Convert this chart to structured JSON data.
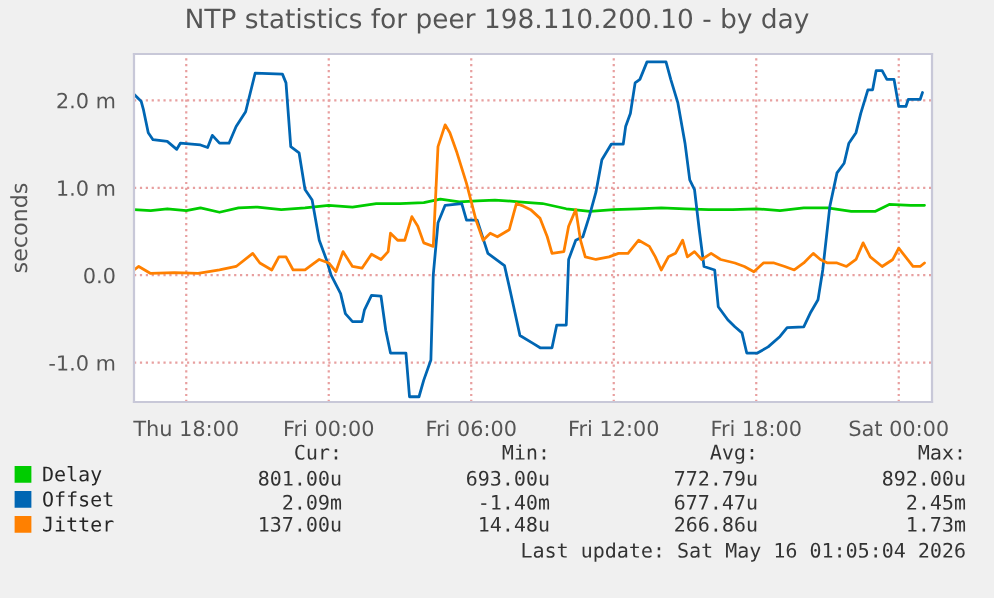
{
  "chart_data": {
    "type": "line",
    "title": "NTP statistics for peer 198.110.200.10 - by day",
    "ylabel": "seconds",
    "xlim": [
      "2026-05-14T15:48",
      "2026-05-16T01:24"
    ],
    "ylim": [
      -1.45,
      2.53
    ],
    "xticks": [
      {
        "value": "2026-05-14T18:00",
        "label": "Thu 18:00"
      },
      {
        "value": "2026-05-15T00:00",
        "label": "Fri 00:00"
      },
      {
        "value": "2026-05-15T06:00",
        "label": "Fri 06:00"
      },
      {
        "value": "2026-05-15T12:00",
        "label": "Fri 12:00"
      },
      {
        "value": "2026-05-15T18:00",
        "label": "Fri 18:00"
      },
      {
        "value": "2026-05-16T00:00",
        "label": "Sat 00:00"
      }
    ],
    "yticks": [
      {
        "value": -1,
        "label": "-1.0 m"
      },
      {
        "value": 0,
        "label": "0.0"
      },
      {
        "value": 1,
        "label": "1.0 m"
      },
      {
        "value": 2,
        "label": "2.0 m"
      }
    ],
    "grid": true,
    "legend": "bottom left",
    "series": [
      {
        "name": "Delay",
        "color": "#00cc00",
        "x": [
          "2026-05-14T15:48",
          "2026-05-14T16:30",
          "2026-05-14T17:12",
          "2026-05-14T18:00",
          "2026-05-14T18:36",
          "2026-05-14T19:24",
          "2026-05-14T20:12",
          "2026-05-14T21:00",
          "2026-05-14T22:00",
          "2026-05-14T23:00",
          "2026-05-15T00:00",
          "2026-05-15T01:00",
          "2026-05-15T02:00",
          "2026-05-15T03:00",
          "2026-05-15T04:00",
          "2026-05-15T04:42",
          "2026-05-15T05:30",
          "2026-05-15T06:15",
          "2026-05-15T07:00",
          "2026-05-15T08:00",
          "2026-05-15T09:00",
          "2026-05-15T10:00",
          "2026-05-15T11:00",
          "2026-05-15T12:00",
          "2026-05-15T13:00",
          "2026-05-15T14:00",
          "2026-05-15T15:00",
          "2026-05-15T16:00",
          "2026-05-15T17:00",
          "2026-05-15T18:00",
          "2026-05-15T19:00",
          "2026-05-15T20:00",
          "2026-05-15T21:00",
          "2026-05-15T22:00",
          "2026-05-15T23:00",
          "2026-05-15T23:36",
          "2026-05-16T00:30",
          "2026-05-16T01:05"
        ],
        "values": [
          0.75,
          0.74,
          0.76,
          0.74,
          0.77,
          0.72,
          0.77,
          0.78,
          0.75,
          0.77,
          0.8,
          0.78,
          0.82,
          0.82,
          0.83,
          0.87,
          0.84,
          0.85,
          0.86,
          0.84,
          0.82,
          0.76,
          0.73,
          0.75,
          0.76,
          0.77,
          0.76,
          0.75,
          0.75,
          0.76,
          0.74,
          0.77,
          0.77,
          0.73,
          0.73,
          0.81,
          0.8,
          0.8
        ]
      },
      {
        "name": "Offset",
        "color": "#0066b3",
        "x": [
          "2026-05-14T15:48",
          "2026-05-14T16:06",
          "2026-05-14T16:12",
          "2026-05-14T16:24",
          "2026-05-14T16:36",
          "2026-05-14T17:12",
          "2026-05-14T17:36",
          "2026-05-14T17:45",
          "2026-05-14T18:36",
          "2026-05-14T18:54",
          "2026-05-14T19:06",
          "2026-05-14T19:24",
          "2026-05-14T19:48",
          "2026-05-14T20:06",
          "2026-05-14T20:30",
          "2026-05-14T20:54",
          "2026-05-14T22:03",
          "2026-05-14T22:12",
          "2026-05-14T22:24",
          "2026-05-14T22:45",
          "2026-05-14T23:00",
          "2026-05-14T23:18",
          "2026-05-14T23:36",
          "2026-05-14T23:54",
          "2026-05-15T00:06",
          "2026-05-15T00:30",
          "2026-05-15T00:42",
          "2026-05-15T01:00",
          "2026-05-15T01:24",
          "2026-05-15T01:30",
          "2026-05-15T01:48",
          "2026-05-15T02:12",
          "2026-05-15T02:24",
          "2026-05-15T02:36",
          "2026-05-15T03:15",
          "2026-05-15T03:24",
          "2026-05-15T03:48",
          "2026-05-15T04:00",
          "2026-05-15T04:18",
          "2026-05-15T04:24",
          "2026-05-15T04:36",
          "2026-05-15T04:54",
          "2026-05-15T05:36",
          "2026-05-15T05:48",
          "2026-05-15T06:15",
          "2026-05-15T06:42",
          "2026-05-15T07:24",
          "2026-05-15T07:36",
          "2026-05-15T08:03",
          "2026-05-15T08:36",
          "2026-05-15T08:54",
          "2026-05-15T09:24",
          "2026-05-15T09:36",
          "2026-05-15T10:00",
          "2026-05-15T10:06",
          "2026-05-15T10:24",
          "2026-05-15T10:42",
          "2026-05-15T10:58",
          "2026-05-15T11:15",
          "2026-05-15T11:30",
          "2026-05-15T11:54",
          "2026-05-15T12:24",
          "2026-05-15T12:30",
          "2026-05-15T12:42",
          "2026-05-15T12:54",
          "2026-05-15T13:06",
          "2026-05-15T13:24",
          "2026-05-15T14:12",
          "2026-05-15T14:24",
          "2026-05-15T14:42",
          "2026-05-15T15:00",
          "2026-05-15T15:12",
          "2026-05-15T15:24",
          "2026-05-15T15:36",
          "2026-05-15T15:48",
          "2026-05-15T16:15",
          "2026-05-15T16:24",
          "2026-05-15T16:48",
          "2026-05-15T17:06",
          "2026-05-15T17:24",
          "2026-05-15T17:36",
          "2026-05-15T18:03",
          "2026-05-15T18:30",
          "2026-05-15T19:00",
          "2026-05-15T19:18",
          "2026-05-15T20:00",
          "2026-05-15T20:18",
          "2026-05-15T20:36",
          "2026-05-15T20:48",
          "2026-05-15T21:06",
          "2026-05-15T21:24",
          "2026-05-15T21:42",
          "2026-05-15T21:54",
          "2026-05-15T22:12",
          "2026-05-15T22:24",
          "2026-05-15T22:42",
          "2026-05-15T22:54",
          "2026-05-15T23:03",
          "2026-05-15T23:18",
          "2026-05-15T23:30",
          "2026-05-15T23:48",
          "2026-05-16T00:00",
          "2026-05-16T00:18",
          "2026-05-16T00:24",
          "2026-05-16T00:54",
          "2026-05-16T01:00"
        ],
        "values": [
          2.07,
          1.99,
          1.89,
          1.63,
          1.55,
          1.53,
          1.44,
          1.51,
          1.49,
          1.46,
          1.6,
          1.51,
          1.51,
          1.7,
          1.87,
          2.31,
          2.3,
          2.2,
          1.47,
          1.4,
          0.98,
          0.86,
          0.4,
          0.18,
          0.0,
          -0.21,
          -0.44,
          -0.53,
          -0.53,
          -0.4,
          -0.23,
          -0.24,
          -0.63,
          -0.89,
          -0.89,
          -1.39,
          -1.39,
          -1.2,
          -0.97,
          0.0,
          0.6,
          0.8,
          0.82,
          0.63,
          0.63,
          0.25,
          0.11,
          -0.13,
          -0.69,
          -0.78,
          -0.83,
          -0.83,
          -0.57,
          -0.57,
          0.18,
          0.4,
          0.44,
          0.67,
          0.95,
          1.32,
          1.5,
          1.5,
          1.7,
          1.85,
          2.2,
          2.24,
          2.44,
          2.44,
          2.24,
          1.97,
          1.51,
          1.09,
          0.98,
          0.52,
          0.1,
          0.06,
          -0.36,
          -0.51,
          -0.59,
          -0.66,
          -0.89,
          -0.89,
          -0.82,
          -0.7,
          -0.6,
          -0.59,
          -0.42,
          -0.28,
          0.06,
          0.79,
          1.17,
          1.28,
          1.51,
          1.63,
          1.85,
          2.12,
          2.12,
          2.34,
          2.34,
          2.24,
          2.24,
          1.93,
          1.93,
          2.01,
          2.01,
          2.09
        ]
      },
      {
        "name": "Jitter",
        "color": "#ff8000",
        "x": [
          "2026-05-14T15:48",
          "2026-05-14T16:00",
          "2026-05-14T16:30",
          "2026-05-14T17:30",
          "2026-05-14T18:30",
          "2026-05-14T19:24",
          "2026-05-14T20:06",
          "2026-05-14T20:48",
          "2026-05-14T21:06",
          "2026-05-14T21:36",
          "2026-05-14T21:54",
          "2026-05-14T22:12",
          "2026-05-14T22:30",
          "2026-05-14T23:00",
          "2026-05-14T23:36",
          "2026-05-15T00:00",
          "2026-05-15T00:18",
          "2026-05-15T00:36",
          "2026-05-15T01:00",
          "2026-05-15T01:24",
          "2026-05-15T01:48",
          "2026-05-15T02:12",
          "2026-05-15T02:30",
          "2026-05-15T02:36",
          "2026-05-15T02:54",
          "2026-05-15T03:12",
          "2026-05-15T03:30",
          "2026-05-15T03:45",
          "2026-05-15T04:00",
          "2026-05-15T04:24",
          "2026-05-15T04:36",
          "2026-05-15T04:54",
          "2026-05-15T05:06",
          "2026-05-15T05:24",
          "2026-05-15T05:48",
          "2026-05-15T06:12",
          "2026-05-15T06:30",
          "2026-05-15T06:48",
          "2026-05-15T07:06",
          "2026-05-15T07:36",
          "2026-05-15T07:54",
          "2026-05-15T08:12",
          "2026-05-15T08:30",
          "2026-05-15T08:54",
          "2026-05-15T09:12",
          "2026-05-15T09:24",
          "2026-05-15T09:54",
          "2026-05-15T10:06",
          "2026-05-15T10:24",
          "2026-05-15T10:36",
          "2026-05-15T10:48",
          "2026-05-15T11:15",
          "2026-05-15T11:48",
          "2026-05-15T12:12",
          "2026-05-15T12:36",
          "2026-05-15T13:03",
          "2026-05-15T13:30",
          "2026-05-15T13:45",
          "2026-05-15T14:00",
          "2026-05-15T14:18",
          "2026-05-15T14:36",
          "2026-05-15T14:54",
          "2026-05-15T15:06",
          "2026-05-15T15:24",
          "2026-05-15T15:42",
          "2026-05-15T16:06",
          "2026-05-15T16:30",
          "2026-05-15T17:06",
          "2026-05-15T17:30",
          "2026-05-15T17:54",
          "2026-05-15T18:18",
          "2026-05-15T18:45",
          "2026-05-15T19:12",
          "2026-05-15T19:36",
          "2026-05-15T20:00",
          "2026-05-15T20:24",
          "2026-05-15T20:42",
          "2026-05-15T21:00",
          "2026-05-15T21:24",
          "2026-05-15T21:48",
          "2026-05-15T22:12",
          "2026-05-15T22:30",
          "2026-05-15T22:48",
          "2026-05-15T23:18",
          "2026-05-15T23:45",
          "2026-05-16T00:00",
          "2026-05-16T00:36",
          "2026-05-16T00:54",
          "2026-05-16T01:05"
        ],
        "values": [
          0.06,
          0.1,
          0.02,
          0.03,
          0.02,
          0.06,
          0.1,
          0.25,
          0.14,
          0.06,
          0.21,
          0.21,
          0.06,
          0.06,
          0.18,
          0.14,
          0.04,
          0.27,
          0.1,
          0.08,
          0.24,
          0.18,
          0.27,
          0.48,
          0.4,
          0.4,
          0.67,
          0.56,
          0.37,
          0.33,
          1.47,
          1.72,
          1.63,
          1.4,
          1.05,
          0.63,
          0.4,
          0.48,
          0.44,
          0.52,
          0.82,
          0.79,
          0.75,
          0.65,
          0.44,
          0.25,
          0.27,
          0.56,
          0.75,
          0.4,
          0.21,
          0.18,
          0.21,
          0.25,
          0.25,
          0.4,
          0.33,
          0.21,
          0.06,
          0.21,
          0.25,
          0.4,
          0.21,
          0.27,
          0.18,
          0.25,
          0.18,
          0.14,
          0.1,
          0.04,
          0.14,
          0.14,
          0.1,
          0.06,
          0.14,
          0.25,
          0.18,
          0.14,
          0.14,
          0.1,
          0.18,
          0.37,
          0.21,
          0.1,
          0.18,
          0.31,
          0.1,
          0.1,
          0.14
        ]
      }
    ],
    "annotations": [
      "Cur:",
      "Min:",
      "Avg:",
      "Max:",
      "801.00u",
      "693.00u",
      "772.79u",
      "892.00u",
      "2.09m",
      "-1.40m",
      "677.47u",
      "2.45m",
      "137.00u",
      "14.48u",
      "266.86u",
      "1.73m",
      "Last update: Sat May 16 01:05:04 2026"
    ]
  }
}
